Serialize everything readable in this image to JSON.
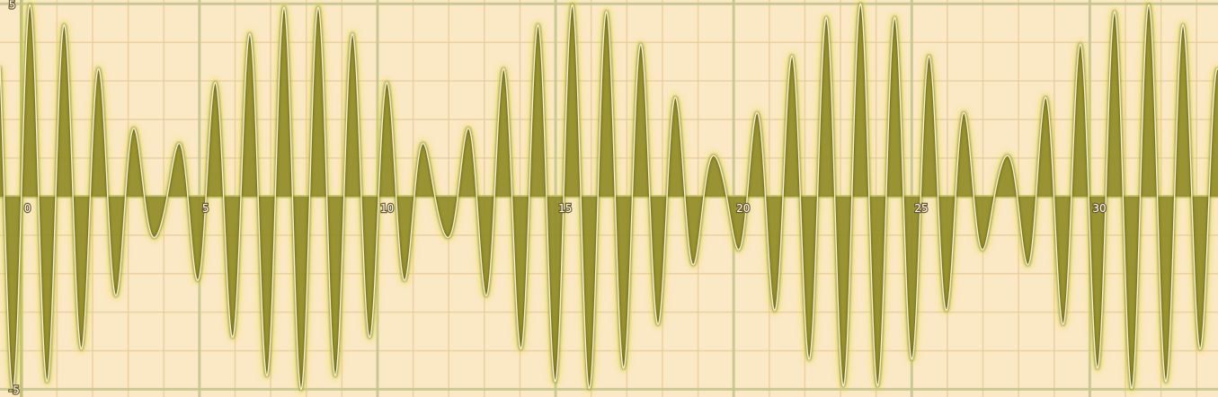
{
  "chart_data": {
    "type": "line",
    "title": "",
    "xlabel": "",
    "ylabel": "",
    "xlim": [
      -0.6,
      33.6
    ],
    "ylim": [
      -5.2,
      5.1
    ],
    "grid": true,
    "minor_grid_step": 1,
    "major_grid_step": 5,
    "x_ticks": [
      {
        "value": 0,
        "label": "0"
      },
      {
        "value": 5,
        "label": "5"
      },
      {
        "value": 10,
        "label": "10"
      },
      {
        "value": 15,
        "label": "15"
      },
      {
        "value": 20,
        "label": "20"
      },
      {
        "value": 25,
        "label": "25"
      },
      {
        "value": 30,
        "label": "30"
      }
    ],
    "y_ticks": [
      {
        "value": 5,
        "label": "5"
      },
      {
        "value": -5,
        "label": "-5"
      }
    ],
    "series": [
      {
        "function": "y = 3·sin(6.2·x) + 2·sin(7.0·x)",
        "x_range": [
          -0.6,
          33.6
        ],
        "components": [
          {
            "amplitude": 3,
            "angular_frequency": 6.2
          },
          {
            "amplitude": 2,
            "angular_frequency": 7.0
          }
        ],
        "color": "#8f8a26"
      }
    ],
    "colors": {
      "background": "#fbe8c4",
      "minor_grid": "#e7c998",
      "major_grid": "#c4c58e",
      "axis": "#bfc27a",
      "curve_fill": "#8f8a26",
      "curve_glow": "#e0e030",
      "curve_highlight": "#f4f0c8"
    }
  }
}
